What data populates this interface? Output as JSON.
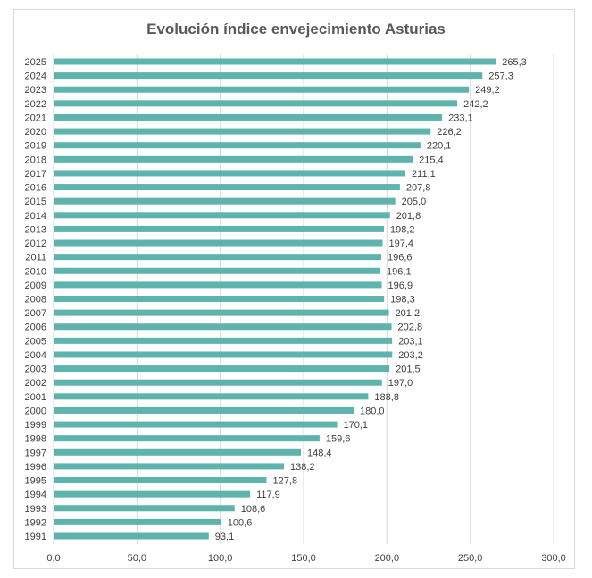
{
  "chart_data": {
    "type": "bar",
    "orientation": "horizontal",
    "title": "Evolución índice envejecimiento Asturias",
    "xlabel": "",
    "ylabel": "",
    "xlim": [
      0,
      300
    ],
    "x_ticks": [
      "0,0",
      "50,0",
      "100,0",
      "150,0",
      "200,0",
      "250,0",
      "300,0"
    ],
    "grid": "vertical",
    "legend": "none",
    "bar_color": "#5fb3ad",
    "categories": [
      "2025",
      "2024",
      "2023",
      "2022",
      "2021",
      "2020",
      "2019",
      "2018",
      "2017",
      "2016",
      "2015",
      "2014",
      "2013",
      "2012",
      "2011",
      "2010",
      "2009",
      "2008",
      "2007",
      "2006",
      "2005",
      "2004",
      "2003",
      "2002",
      "2001",
      "2000",
      "1999",
      "1998",
      "1997",
      "1996",
      "1995",
      "1994",
      "1993",
      "1992",
      "1991"
    ],
    "values": [
      265.3,
      257.3,
      249.2,
      242.2,
      233.1,
      226.2,
      220.1,
      215.4,
      211.1,
      207.8,
      205.0,
      201.8,
      198.2,
      197.4,
      196.6,
      196.1,
      196.9,
      198.3,
      201.2,
      202.8,
      203.1,
      203.2,
      201.5,
      197.0,
      188.8,
      180.0,
      170.1,
      159.6,
      148.4,
      138.2,
      127.8,
      117.9,
      108.6,
      100.6,
      93.1
    ],
    "data_labels": [
      "265,3",
      "257,3",
      "249,2",
      "242,2",
      "233,1",
      "226,2",
      "220,1",
      "215,4",
      "211,1",
      "207,8",
      "205,0",
      "201,8",
      "198,2",
      "197,4",
      "196,6",
      "196,1",
      "196,9",
      "198,3",
      "201,2",
      "202,8",
      "203,1",
      "203,2",
      "201,5",
      "197,0",
      "188,8",
      "180,0",
      "170,1",
      "159,6",
      "148,4",
      "138,2",
      "127,8",
      "117,9",
      "108,6",
      "100,6",
      "93,1"
    ]
  }
}
